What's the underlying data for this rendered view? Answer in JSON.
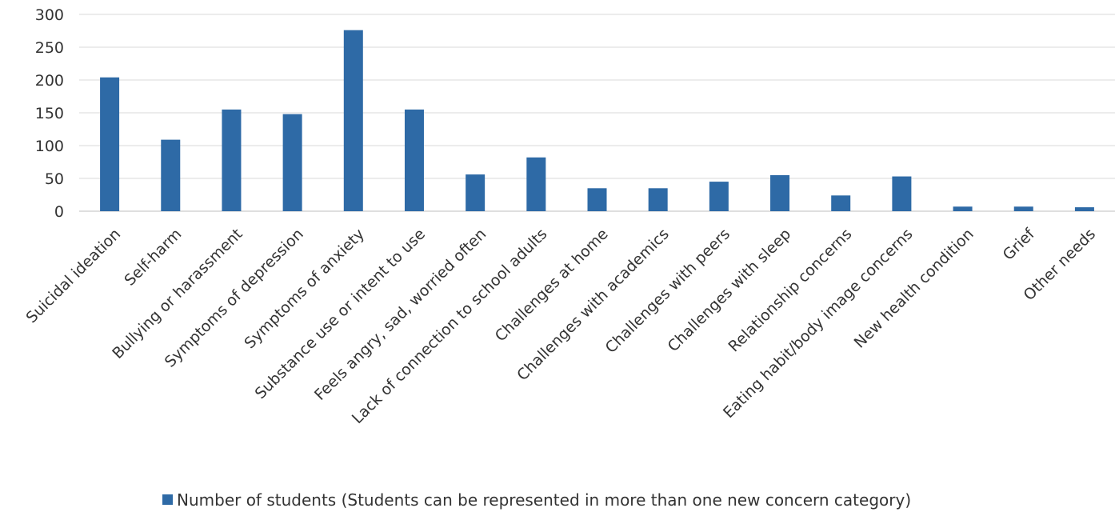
{
  "chart_data": {
    "type": "bar",
    "title": "",
    "xlabel": "",
    "ylabel": "",
    "ylim": [
      0,
      300
    ],
    "yticks": [
      0,
      50,
      100,
      150,
      200,
      250,
      300
    ],
    "grid": true,
    "legend_position": "bottom",
    "color": "#2e6aa6",
    "categories": [
      "Suicidal ideation",
      "Self-harm",
      "Bullying or harassment",
      "Symptoms of depression",
      "Symptoms of anxiety",
      "Substance use or intent to use",
      "Feels angry, sad, worried often",
      "Lack of connection to school adults",
      "Challenges at home",
      "Challenges with academics",
      "Challenges with peers",
      "Challenges with sleep",
      "Relationship concerns",
      "Eating habit/body image concerns",
      "New health condition",
      "Grief",
      "Other needs"
    ],
    "series": [
      {
        "name": "Number of students (Students can be represented in more than one new concern category)",
        "values": [
          204,
          109,
          155,
          148,
          276,
          155,
          56,
          82,
          35,
          35,
          45,
          55,
          24,
          53,
          7,
          7,
          6
        ]
      }
    ]
  }
}
